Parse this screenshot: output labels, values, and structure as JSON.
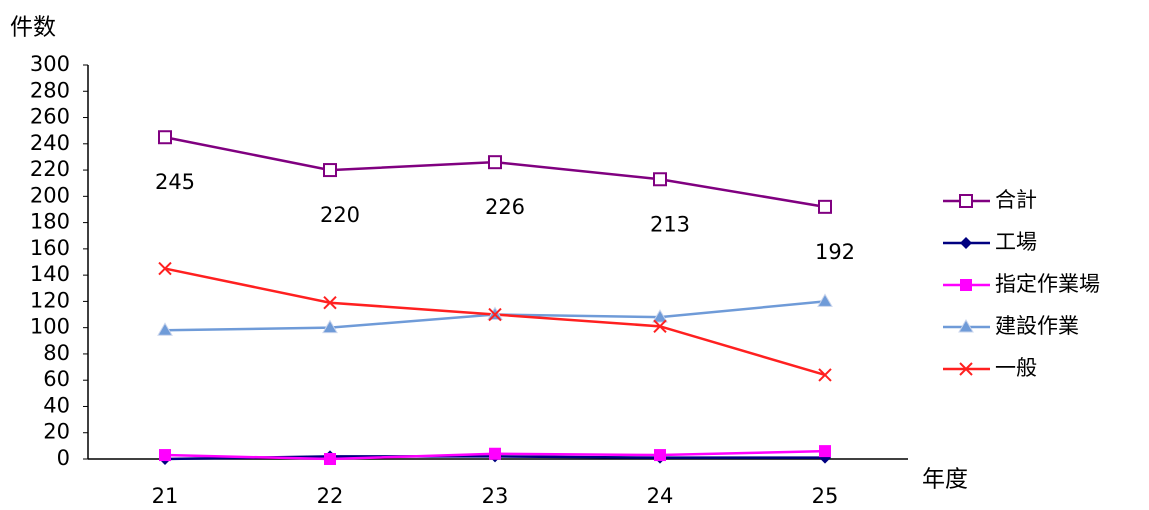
{
  "chart_data": {
    "type": "line",
    "y_label": "件数",
    "x_label": "年度",
    "categories": [
      "21",
      "22",
      "23",
      "24",
      "25"
    ],
    "series": [
      {
        "name": "合計",
        "color": "#800080",
        "marker": "open-square",
        "values": [
          245,
          220,
          226,
          213,
          192
        ],
        "data_labels": true
      },
      {
        "name": "工場",
        "color": "#000080",
        "marker": "diamond",
        "values": [
          0,
          2,
          2,
          1,
          1
        ]
      },
      {
        "name": "指定作業場",
        "color": "#ff00ff",
        "marker": "square",
        "values": [
          3,
          0,
          4,
          3,
          6
        ]
      },
      {
        "name": "建設作業",
        "color": "#6f9bd8",
        "marker": "triangle",
        "values": [
          98,
          100,
          110,
          108,
          120
        ]
      },
      {
        "name": "一般",
        "color": "#ff2020",
        "marker": "x",
        "values": [
          145,
          119,
          110,
          101,
          64
        ]
      }
    ],
    "ylim": [
      0,
      300
    ],
    "yticks": [
      0,
      20,
      40,
      60,
      80,
      100,
      120,
      140,
      160,
      180,
      200,
      220,
      240,
      260,
      280,
      300
    ],
    "grid": false,
    "legend": "right"
  }
}
